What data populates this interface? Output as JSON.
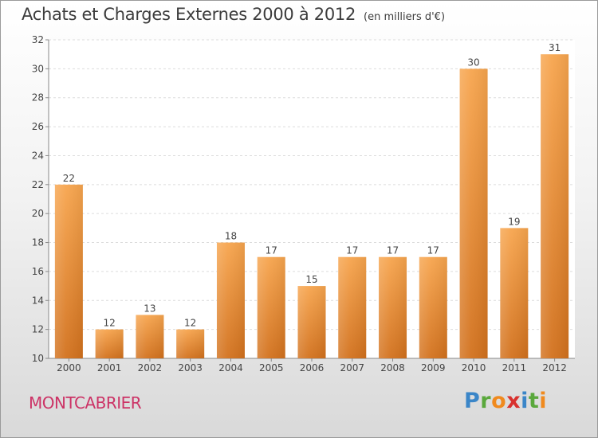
{
  "chart_data": {
    "type": "bar",
    "title": "Achats et Charges Externes 2000 à 2012",
    "unit": "(en milliers d'€)",
    "categories": [
      "2000",
      "2001",
      "2002",
      "2003",
      "2004",
      "2005",
      "2006",
      "2007",
      "2008",
      "2009",
      "2010",
      "2011",
      "2012"
    ],
    "values": [
      22,
      12,
      13,
      12,
      18,
      17,
      15,
      17,
      17,
      17,
      30,
      19,
      31
    ],
    "ylim": [
      10,
      32
    ],
    "yticks": [
      10,
      12,
      14,
      16,
      18,
      20,
      22,
      24,
      26,
      28,
      30,
      32
    ],
    "grid": true,
    "bar_color_top": "#f7a54e",
    "bar_color_bottom": "#d2711d"
  },
  "place": "MONTCABRIER",
  "logo": {
    "text": "Proxiti",
    "letters": [
      {
        "ch": "P",
        "color": "#3b86c8"
      },
      {
        "ch": "r",
        "color": "#5aa83c"
      },
      {
        "ch": "o",
        "color": "#f08a1e"
      },
      {
        "ch": "x",
        "color": "#d8312e"
      },
      {
        "ch": "i",
        "color": "#3b86c8"
      },
      {
        "ch": "t",
        "color": "#5aa83c"
      },
      {
        "ch": "i",
        "color": "#f08a1e"
      }
    ]
  }
}
